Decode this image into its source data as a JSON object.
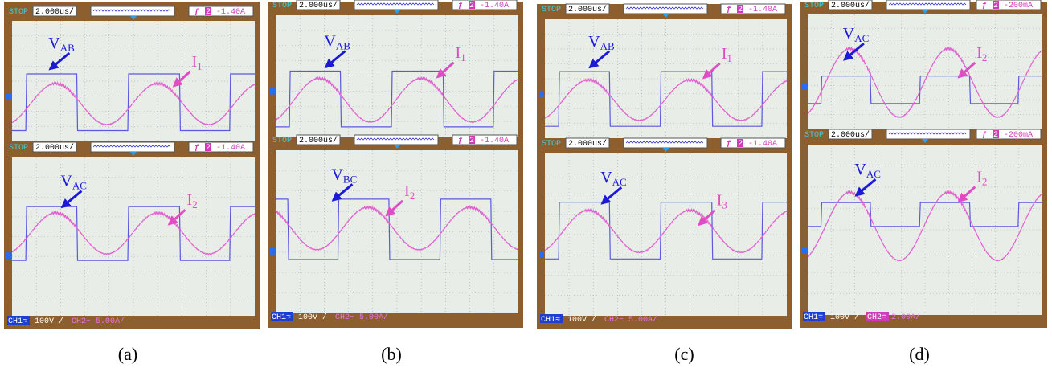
{
  "panels": [
    {
      "label": "(a)",
      "screens": [
        {
          "status": "STOP",
          "timebase": "2.000us/",
          "trigger_icon": "ƒ",
          "trigger_channel": "2",
          "trigger_level": "-1.40A",
          "voltage_label": {
            "main": "V",
            "sub": "AB"
          },
          "current_label": {
            "main": "I",
            "sub": "1"
          }
        },
        {
          "status": "STOP",
          "timebase": "2.000us/",
          "trigger_icon": "ƒ",
          "trigger_channel": "2",
          "trigger_level": "-1.40A",
          "voltage_label": {
            "main": "V",
            "sub": "AC"
          },
          "current_label": {
            "main": "I",
            "sub": "2"
          }
        }
      ],
      "footer": {
        "ch1": "CH1≈",
        "ch1_scale": "100V /",
        "ch2": "CH2~",
        "ch2_scale": "5.00A/"
      }
    },
    {
      "label": "(b)",
      "screens": [
        {
          "status": "STOP",
          "timebase": "2.000us/",
          "trigger_icon": "ƒ",
          "trigger_channel": "2",
          "trigger_level": "-1.40A",
          "voltage_label": {
            "main": "V",
            "sub": "AB"
          },
          "current_label": {
            "main": "I",
            "sub": "1"
          }
        },
        {
          "status": "STOP",
          "timebase": "2.000us/",
          "trigger_icon": "ƒ",
          "trigger_channel": "2",
          "trigger_level": "-1.40A",
          "voltage_label": {
            "main": "V",
            "sub": "BC"
          },
          "current_label": {
            "main": "I",
            "sub": "2"
          }
        }
      ],
      "footer": {
        "ch1": "CH1≈",
        "ch1_scale": "100V /",
        "ch2": "CH2~",
        "ch2_scale": "5.00A/"
      }
    },
    {
      "label": "(c)",
      "screens": [
        {
          "status": "STOP",
          "timebase": "2.000us/",
          "trigger_icon": "ƒ",
          "trigger_channel": "2",
          "trigger_level": "-1.40A",
          "voltage_label": {
            "main": "V",
            "sub": "AB"
          },
          "current_label": {
            "main": "I",
            "sub": "1"
          }
        },
        {
          "status": "STOP",
          "timebase": "2.000us/",
          "trigger_icon": "ƒ",
          "trigger_channel": "2",
          "trigger_level": "-1.40A",
          "voltage_label": {
            "main": "V",
            "sub": "AC"
          },
          "current_label": {
            "main": "I",
            "sub": "3"
          }
        }
      ],
      "footer": {
        "ch1": "CH1≈",
        "ch1_scale": "100V /",
        "ch2": "CH2~",
        "ch2_scale": "5.00A/"
      }
    },
    {
      "label": "(d)",
      "screens": [
        {
          "status": "STOP",
          "timebase": "2.000us/",
          "trigger_icon": "ƒ",
          "trigger_channel": "2",
          "trigger_level": "-200mA",
          "voltage_label": {
            "main": "V",
            "sub": "AC"
          },
          "current_label": {
            "main": "I",
            "sub": "2"
          }
        },
        {
          "status": "STOP",
          "timebase": "2.000us/",
          "trigger_icon": "ƒ",
          "trigger_channel": "2",
          "trigger_level": "-200mA",
          "voltage_label": {
            "main": "V",
            "sub": "AC"
          },
          "current_label": {
            "main": "I",
            "sub": "2"
          }
        }
      ],
      "footer": {
        "ch1": "CH1=",
        "ch1_scale": "100V /",
        "ch2": "CH2=",
        "ch2_scale": "2.00A/"
      }
    }
  ]
}
